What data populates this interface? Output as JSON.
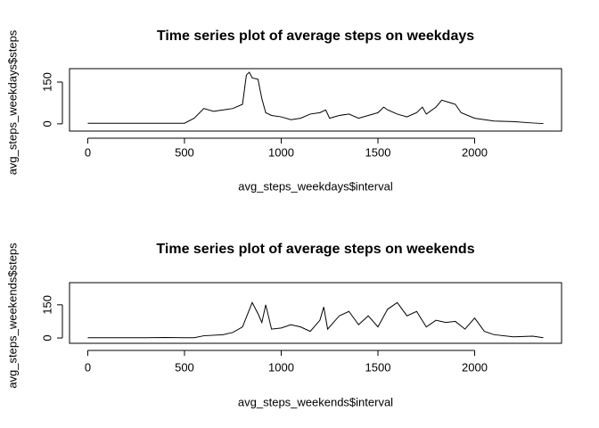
{
  "chart_data": [
    {
      "type": "line",
      "title": "Time series plot of average steps on weekdays",
      "xlabel": "avg_steps_weekdays$interval",
      "ylabel": "avg_steps_weekdays$steps",
      "x": [
        0,
        100,
        200,
        300,
        400,
        500,
        550,
        600,
        650,
        700,
        750,
        800,
        820,
        835,
        850,
        880,
        900,
        920,
        950,
        1000,
        1050,
        1100,
        1150,
        1200,
        1230,
        1250,
        1300,
        1350,
        1400,
        1450,
        1500,
        1530,
        1550,
        1600,
        1650,
        1700,
        1730,
        1750,
        1800,
        1830,
        1900,
        1930,
        2000,
        2100,
        2200,
        2300,
        2355
      ],
      "series": [
        {
          "name": "steps",
          "color": "#000000",
          "values": [
            2,
            2,
            2,
            2,
            2,
            2,
            20,
            55,
            45,
            50,
            55,
            70,
            175,
            185,
            165,
            160,
            90,
            40,
            30,
            25,
            15,
            20,
            35,
            40,
            50,
            20,
            30,
            35,
            20,
            30,
            40,
            60,
            50,
            35,
            25,
            40,
            60,
            35,
            60,
            85,
            70,
            40,
            20,
            10,
            8,
            3,
            1
          ]
        }
      ],
      "xlim": [
        -94.2,
        2449.2
      ],
      "xticks": [
        0,
        500,
        1000,
        1500,
        2000
      ],
      "ylim": [
        -26,
        198
      ],
      "yticks": [
        0,
        150
      ]
    },
    {
      "type": "line",
      "title": "Time series plot of average steps on weekends",
      "xlabel": "avg_steps_weekends$interval",
      "ylabel": "avg_steps_weekends$steps",
      "x": [
        0,
        100,
        200,
        300,
        400,
        500,
        550,
        600,
        700,
        750,
        800,
        850,
        880,
        900,
        920,
        950,
        1000,
        1050,
        1100,
        1150,
        1200,
        1220,
        1240,
        1300,
        1350,
        1400,
        1450,
        1500,
        1550,
        1600,
        1650,
        1700,
        1750,
        1800,
        1850,
        1900,
        1950,
        2000,
        2050,
        2100,
        2200,
        2300,
        2355
      ],
      "series": [
        {
          "name": "steps",
          "color": "#000000",
          "values": [
            1,
            1,
            1,
            1,
            2,
            1,
            1,
            10,
            15,
            25,
            50,
            160,
            110,
            70,
            150,
            40,
            45,
            60,
            50,
            30,
            80,
            140,
            40,
            100,
            120,
            60,
            100,
            50,
            130,
            160,
            100,
            120,
            50,
            80,
            70,
            75,
            40,
            90,
            30,
            15,
            5,
            8,
            1
          ]
        }
      ],
      "xlim": [
        -94.2,
        2449.2
      ],
      "xticks": [
        0,
        500,
        1000,
        1500,
        2000
      ],
      "ylim": [
        -24,
        250
      ],
      "yticks": [
        0,
        150
      ]
    }
  ]
}
